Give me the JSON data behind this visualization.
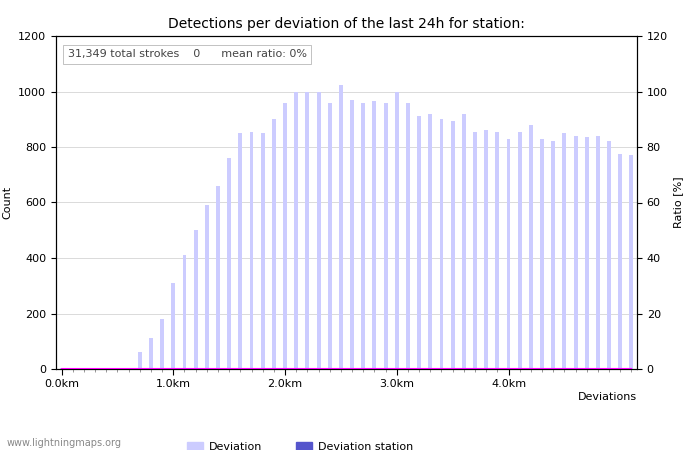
{
  "title": "Detections per deviation of the last 24h for station:",
  "annotation": "31,349 total strokes    0      mean ratio: 0%",
  "xlabel": "Deviations",
  "ylabel_left": "Count",
  "ylabel_right": "Ratio [%]",
  "ylim_left": [
    0,
    1200
  ],
  "ylim_right": [
    0,
    120
  ],
  "yticks_left": [
    0,
    200,
    400,
    600,
    800,
    1000,
    1200
  ],
  "yticks_right": [
    0,
    20,
    40,
    60,
    80,
    100,
    120
  ],
  "xtick_labels": [
    "0.0km",
    "1.0km",
    "2.0km",
    "3.0km",
    "4.0km"
  ],
  "xtick_positions": [
    0,
    10,
    20,
    30,
    40
  ],
  "bar_color_deviation": "#ccccff",
  "bar_color_station": "#5555cc",
  "line_color_percentage": "#ff00ff",
  "background_color": "#ffffff",
  "grid_color": "#cccccc",
  "title_fontsize": 10,
  "label_fontsize": 8,
  "tick_fontsize": 8,
  "annotation_fontsize": 8,
  "watermark": "www.lightningmaps.org",
  "watermark_fontsize": 7,
  "deviation_values": [
    3,
    5,
    3,
    5,
    3,
    5,
    3,
    60,
    110,
    180,
    310,
    410,
    500,
    590,
    660,
    760,
    850,
    855,
    850,
    900,
    960,
    1000,
    1000,
    1000,
    960,
    1025,
    970,
    960,
    965,
    960,
    1000,
    960,
    910,
    920,
    900,
    895,
    920,
    855,
    860,
    855,
    830,
    855,
    880,
    830,
    820,
    850,
    840,
    835,
    840,
    820,
    775,
    770
  ],
  "station_values": [
    0,
    0,
    0,
    0,
    0,
    0,
    0,
    0,
    0,
    0,
    0,
    0,
    0,
    0,
    0,
    0,
    0,
    0,
    0,
    0,
    0,
    0,
    0,
    0,
    0,
    0,
    0,
    0,
    0,
    0,
    0,
    0,
    0,
    0,
    0,
    0,
    0,
    0,
    0,
    0,
    0,
    0,
    0,
    0,
    0,
    0,
    0,
    0,
    0,
    0,
    0,
    0
  ],
  "percentage_values": [
    0,
    0,
    0,
    0,
    0,
    0,
    0,
    0,
    0,
    0,
    0,
    0,
    0,
    0,
    0,
    0,
    0,
    0,
    0,
    0,
    0,
    0,
    0,
    0,
    0,
    0,
    0,
    0,
    0,
    0,
    0,
    0,
    0,
    0,
    0,
    0,
    0,
    0,
    0,
    0,
    0,
    0,
    0,
    0,
    0,
    0,
    0,
    0,
    0,
    0,
    0,
    0
  ]
}
